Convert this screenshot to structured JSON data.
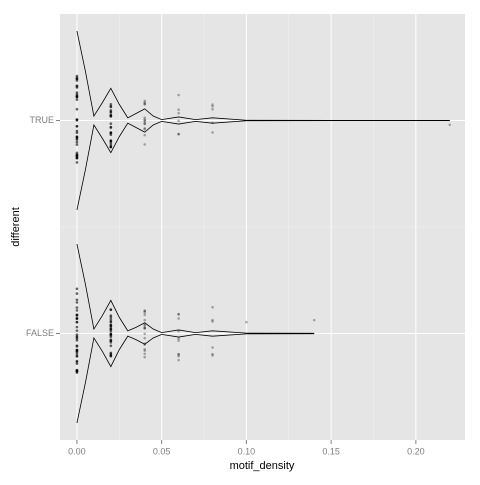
{
  "chart_data": {
    "type": "violin",
    "xlabel": "motif_density",
    "ylabel": "different",
    "categories": [
      "FALSE",
      "TRUE"
    ],
    "xlim": [
      -0.01,
      0.229
    ],
    "xticks": [
      {
        "value": 0,
        "label": "0.00"
      },
      {
        "value": 0.05,
        "label": "0.05"
      },
      {
        "value": 0.1,
        "label": "0.10"
      },
      {
        "value": 0.15,
        "label": "0.15"
      },
      {
        "value": 0.2,
        "label": "0.20"
      }
    ],
    "grid": true,
    "line_color": "#000000",
    "point_color": "#000000",
    "violins": [
      {
        "x": [
          0,
          0.005,
          0.01,
          0.015,
          0.02,
          0.025,
          0.03,
          0.035,
          0.04,
          0.045,
          0.05,
          0.06,
          0.07,
          0.08,
          0.1,
          0.14
        ],
        "width": [
          1,
          0.55,
          0.05,
          0.2,
          0.37,
          0.18,
          0.03,
          0.07,
          0.12,
          0.05,
          0.01,
          0.04,
          0.01,
          0.03,
          0.004,
          0.002
        ]
      },
      {
        "x": [
          0,
          0.005,
          0.01,
          0.015,
          0.02,
          0.025,
          0.03,
          0.035,
          0.04,
          0.045,
          0.05,
          0.06,
          0.07,
          0.08,
          0.1,
          0.15,
          0.22
        ],
        "width": [
          1,
          0.55,
          0.05,
          0.2,
          0.36,
          0.18,
          0.03,
          0.08,
          0.13,
          0.05,
          0.01,
          0.04,
          0.01,
          0.03,
          0.003,
          0.001,
          0.001
        ]
      }
    ],
    "points": [
      [
        {
          "value": 0,
          "count": 40
        },
        {
          "value": 0.02,
          "count": 30
        },
        {
          "value": 0.04,
          "count": 18
        },
        {
          "value": 0.06,
          "count": 10
        },
        {
          "value": 0.08,
          "count": 6
        },
        {
          "value": 0.1,
          "count": 1
        },
        {
          "value": 0.14,
          "count": 1
        }
      ],
      [
        {
          "value": 0,
          "count": 40
        },
        {
          "value": 0.02,
          "count": 25
        },
        {
          "value": 0.04,
          "count": 14
        },
        {
          "value": 0.06,
          "count": 6
        },
        {
          "value": 0.08,
          "count": 5
        },
        {
          "value": 0.22,
          "count": 1
        }
      ]
    ]
  }
}
